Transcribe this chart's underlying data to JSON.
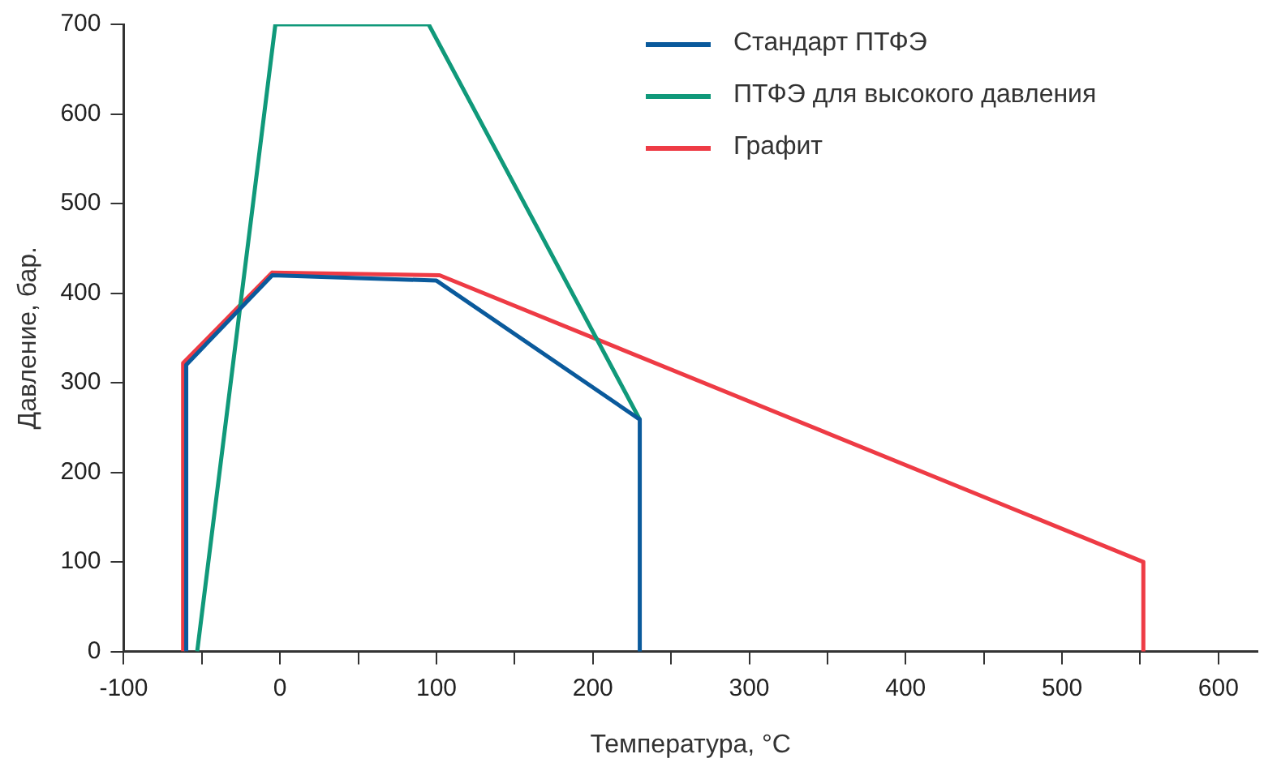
{
  "chart_data": {
    "type": "line",
    "xlabel": "Температура, °C",
    "ylabel": "Давление, бар.",
    "xlim": [
      -100,
      625
    ],
    "ylim": [
      0,
      700
    ],
    "xticks": [
      -100,
      {
        "value": -50,
        "label": null
      },
      0,
      {
        "value": 50,
        "label": null
      },
      100,
      {
        "value": 150,
        "label": null
      },
      200,
      {
        "value": 250,
        "label": null
      },
      300,
      {
        "value": 350,
        "label": null
      },
      400,
      {
        "value": 450,
        "label": null
      },
      500,
      {
        "value": 550,
        "label": null
      },
      600
    ],
    "yticks": [
      0,
      100,
      200,
      300,
      400,
      500,
      600,
      700
    ],
    "grid": false,
    "legend": "top right",
    "marker": "none",
    "line_style": "solid",
    "series": [
      {
        "name": "Стандарт ПТФЭ",
        "color": "#0a5a9c",
        "x": [
          -60,
          -60,
          -5,
          100,
          230,
          230
        ],
        "values": [
          0,
          320,
          420,
          414,
          259,
          0
        ]
      },
      {
        "name": "ПТФЭ для высокого давления",
        "color": "#10997a",
        "x": [
          -53,
          -3,
          95,
          230
        ],
        "values": [
          0,
          700,
          700,
          259
        ]
      },
      {
        "name": "Графит",
        "color": "#ee3b45",
        "x": [
          -62,
          -62,
          -5,
          102,
          552,
          552
        ],
        "values": [
          0,
          322,
          423,
          420,
          100,
          0
        ]
      }
    ]
  }
}
